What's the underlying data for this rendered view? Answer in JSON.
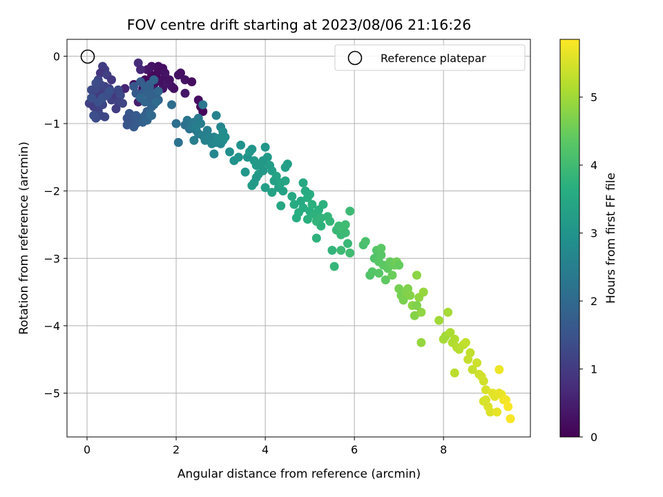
{
  "chart_data": {
    "type": "scatter",
    "title": "FOV centre drift starting at 2023/08/06 21:16:26",
    "xlabel": "Angular distance from reference (arcmin)",
    "ylabel": "Rotation from reference (arcmin)",
    "xlim": [
      -0.45,
      9.95
    ],
    "ylim": [
      -5.65,
      0.25
    ],
    "xticks": [
      0,
      2,
      4,
      6,
      8
    ],
    "yticks": [
      0,
      -1,
      -2,
      -3,
      -4,
      -5
    ],
    "xtick_labels": [
      "0",
      "2",
      "4",
      "6",
      "8"
    ],
    "ytick_labels": [
      "0",
      "−1",
      "−2",
      "−3",
      "−4",
      "−5"
    ],
    "grid": true,
    "colormap": "viridis",
    "colorbar": {
      "label": "Hours from first FF file",
      "range": [
        0,
        5.85
      ],
      "ticks": [
        0,
        1,
        2,
        3,
        4,
        5
      ],
      "tick_labels": [
        "0",
        "1",
        "2",
        "3",
        "4",
        "5"
      ]
    },
    "legend": {
      "position": "top-right",
      "entries": [
        "Reference platepar"
      ]
    },
    "reference_point": {
      "x": 0,
      "y": 0
    },
    "points": [
      [
        1.05,
        -0.42,
        0.15
      ],
      [
        1.25,
        -0.48,
        0.2
      ],
      [
        1.3,
        -0.35,
        0.1
      ],
      [
        1.4,
        -0.38,
        0.12
      ],
      [
        1.45,
        -0.28,
        0.15
      ],
      [
        1.5,
        -0.42,
        0.2
      ],
      [
        1.55,
        -0.3,
        0.1
      ],
      [
        1.6,
        -0.22,
        0.18
      ],
      [
        1.65,
        -0.38,
        0.25
      ],
      [
        1.7,
        -0.48,
        0.3
      ],
      [
        1.75,
        -0.3,
        0.22
      ],
      [
        1.8,
        -0.4,
        0.35
      ],
      [
        1.85,
        -0.35,
        0.28
      ],
      [
        1.9,
        -0.45,
        0.3
      ],
      [
        1.55,
        -0.52,
        0.4
      ],
      [
        1.45,
        -0.15,
        0.3
      ],
      [
        1.35,
        -0.2,
        0.35
      ],
      [
        1.6,
        -0.15,
        0.25
      ],
      [
        1.7,
        -0.18,
        0.22
      ],
      [
        1.75,
        -0.25,
        0.3
      ],
      [
        2.05,
        -0.28,
        0.3
      ],
      [
        2.1,
        -0.25,
        0.25
      ],
      [
        2.2,
        -0.35,
        0.3
      ],
      [
        2.5,
        -0.65,
        0.2
      ],
      [
        2.6,
        -0.82,
        0.1
      ],
      [
        2.55,
        -0.75,
        0.15
      ],
      [
        2.2,
        -0.55,
        0.35
      ],
      [
        2.35,
        -0.38,
        0.2
      ],
      [
        1.95,
        -0.48,
        0.25
      ],
      [
        1.5,
        -0.6,
        0.7
      ],
      [
        1.15,
        -0.68,
        0.5
      ],
      [
        0.85,
        -0.48,
        0.6
      ],
      [
        1.15,
        -0.1,
        0.75
      ],
      [
        1.2,
        -0.2,
        0.65
      ],
      [
        0.4,
        -0.2,
        1.0
      ],
      [
        0.35,
        -0.15,
        1.05
      ],
      [
        0.3,
        -0.25,
        0.9
      ],
      [
        0.45,
        -0.28,
        1.1
      ],
      [
        0.55,
        -0.35,
        0.95
      ],
      [
        0.5,
        -0.48,
        1.15
      ],
      [
        0.6,
        -0.55,
        1.2
      ],
      [
        0.55,
        -0.65,
        1.1
      ],
      [
        0.65,
        -0.6,
        1.0
      ],
      [
        0.7,
        -0.5,
        1.25
      ],
      [
        0.75,
        -0.58,
        1.3
      ],
      [
        0.7,
        -0.68,
        1.15
      ],
      [
        0.8,
        -0.7,
        1.2
      ],
      [
        0.65,
        -0.78,
        1.05
      ],
      [
        0.1,
        -0.5,
        1.3
      ],
      [
        0.15,
        -0.58,
        1.25
      ],
      [
        0.2,
        -0.65,
        1.2
      ],
      [
        0.25,
        -0.55,
        1.1
      ],
      [
        0.3,
        -0.6,
        1.0
      ],
      [
        0.35,
        -0.5,
        1.05
      ],
      [
        0.4,
        -0.45,
        1.15
      ],
      [
        0.25,
        -0.35,
        1.2
      ],
      [
        0.2,
        -0.48,
        1.3
      ],
      [
        0.3,
        -0.42,
        1.25
      ],
      [
        0.05,
        -0.7,
        1.1
      ],
      [
        0.15,
        -0.75,
        1.05
      ],
      [
        0.25,
        -0.8,
        1.15
      ],
      [
        0.35,
        -0.72,
        1.2
      ],
      [
        0.3,
        -0.88,
        1.3
      ],
      [
        0.2,
        -0.92,
        1.35
      ],
      [
        0.4,
        -0.9,
        1.25
      ],
      [
        0.15,
        -0.88,
        1.4
      ],
      [
        0.25,
        -0.68,
        1.45
      ],
      [
        0.35,
        -0.62,
        1.5
      ],
      [
        0.45,
        -0.58,
        1.4
      ],
      [
        0.2,
        -0.4,
        1.35
      ],
      [
        0.1,
        -0.62,
        1.45
      ],
      [
        0.5,
        -0.52,
        1.45
      ],
      [
        0.95,
        -0.85,
        1.55
      ],
      [
        1.0,
        -0.95,
        1.6
      ],
      [
        1.1,
        -1.0,
        1.65
      ],
      [
        1.05,
        -1.05,
        1.7
      ],
      [
        0.95,
        -1.0,
        1.6
      ],
      [
        0.9,
        -0.92,
        1.5
      ],
      [
        0.9,
        -1.02,
        1.55
      ],
      [
        1.2,
        -0.92,
        1.75
      ],
      [
        1.25,
        -0.98,
        1.8
      ],
      [
        1.3,
        -0.88,
        1.85
      ],
      [
        1.35,
        -0.82,
        1.7
      ],
      [
        1.45,
        -0.75,
        1.85
      ],
      [
        1.4,
        -0.65,
        1.8
      ],
      [
        1.5,
        -0.72,
        1.9
      ],
      [
        1.55,
        -0.58,
        1.95
      ],
      [
        1.6,
        -0.65,
        1.85
      ],
      [
        1.5,
        -0.55,
        1.8
      ],
      [
        1.45,
        -0.62,
        1.75
      ],
      [
        1.35,
        -0.95,
        1.9
      ],
      [
        1.4,
        -0.85,
        1.95
      ],
      [
        1.55,
        -0.68,
        2.0
      ],
      [
        1.6,
        -0.52,
        1.95
      ],
      [
        1.1,
        -0.88,
        1.65
      ],
      [
        1.2,
        -0.38,
        1.7
      ],
      [
        1.3,
        -0.45,
        1.75
      ],
      [
        1.25,
        -0.55,
        1.7
      ],
      [
        1.05,
        -0.45,
        1.6
      ],
      [
        1.1,
        -0.55,
        1.65
      ],
      [
        1.4,
        -0.45,
        1.8
      ],
      [
        1.35,
        -0.55,
        1.85
      ],
      [
        1.2,
        -0.62,
        1.95
      ],
      [
        1.3,
        -0.68,
        1.9
      ],
      [
        1.4,
        -0.42,
        1.75
      ],
      [
        1.5,
        -0.35,
        1.9
      ],
      [
        1.45,
        -0.88,
        2.0
      ],
      [
        1.9,
        -0.72,
        2.05
      ],
      [
        2.0,
        -1.0,
        2.1
      ],
      [
        2.05,
        -1.28,
        2.2
      ],
      [
        2.2,
        -1.02,
        2.15
      ],
      [
        2.3,
        -1.08,
        2.2
      ],
      [
        2.25,
        -0.95,
        2.25
      ],
      [
        2.35,
        -1.05,
        2.3
      ],
      [
        2.4,
        -0.98,
        2.35
      ],
      [
        2.45,
        -1.1,
        2.3
      ],
      [
        2.5,
        -0.92,
        2.4
      ],
      [
        2.55,
        -1.0,
        2.45
      ],
      [
        2.5,
        -1.15,
        2.4
      ],
      [
        2.4,
        -1.25,
        2.45
      ],
      [
        2.6,
        -1.18,
        2.5
      ],
      [
        2.65,
        -1.25,
        2.55
      ],
      [
        2.7,
        -1.1,
        2.5
      ],
      [
        2.6,
        -0.72,
        2.3
      ],
      [
        2.75,
        -1.2,
        2.6
      ],
      [
        2.8,
        -1.3,
        2.65
      ],
      [
        2.85,
        -1.2,
        2.6
      ],
      [
        2.9,
        -1.28,
        2.7
      ],
      [
        2.95,
        -1.22,
        2.75
      ],
      [
        3.0,
        -1.3,
        2.7
      ],
      [
        3.05,
        -1.25,
        2.75
      ],
      [
        2.85,
        -1.45,
        2.7
      ],
      [
        3.0,
        -1.05,
        2.65
      ],
      [
        3.05,
        -1.12,
        2.8
      ],
      [
        3.1,
        -1.2,
        2.85
      ],
      [
        2.9,
        -0.88,
        2.6
      ],
      [
        2.45,
        -1.05,
        2.5
      ],
      [
        3.2,
        -1.42,
        2.9
      ],
      [
        3.3,
        -1.55,
        2.95
      ],
      [
        3.4,
        -1.5,
        3.0
      ],
      [
        3.45,
        -1.32,
        2.95
      ],
      [
        3.55,
        -1.72,
        3.05
      ],
      [
        3.6,
        -1.5,
        3.0
      ],
      [
        3.65,
        -1.42,
        3.1
      ],
      [
        3.7,
        -1.38,
        3.05
      ],
      [
        3.75,
        -1.55,
        3.1
      ],
      [
        3.8,
        -1.62,
        3.15
      ],
      [
        3.85,
        -1.75,
        3.2
      ],
      [
        3.9,
        -1.62,
        3.15
      ],
      [
        3.95,
        -1.7,
        3.1
      ],
      [
        4.0,
        -1.35,
        3.05
      ],
      [
        4.05,
        -1.5,
        3.15
      ],
      [
        3.7,
        -1.92,
        3.2
      ],
      [
        3.75,
        -1.88,
        3.15
      ],
      [
        3.8,
        -1.8,
        3.1
      ],
      [
        4.1,
        -1.62,
        3.2
      ],
      [
        4.15,
        -1.7,
        3.25
      ],
      [
        4.2,
        -1.85,
        3.3
      ],
      [
        4.25,
        -1.78,
        3.35
      ],
      [
        4.3,
        -1.95,
        3.3
      ],
      [
        4.35,
        -1.88,
        3.4
      ],
      [
        4.4,
        -2.0,
        3.35
      ],
      [
        4.45,
        -1.85,
        3.4
      ],
      [
        4.5,
        -1.6,
        3.25
      ],
      [
        4.45,
        -1.65,
        3.3
      ],
      [
        4.15,
        -2.02,
        3.35
      ],
      [
        4.35,
        -2.22,
        3.45
      ],
      [
        4.0,
        -1.95,
        3.25
      ],
      [
        3.95,
        -1.55,
        3.1
      ],
      [
        4.6,
        -2.08,
        3.5
      ],
      [
        4.65,
        -2.2,
        3.55
      ],
      [
        4.7,
        -2.4,
        3.6
      ],
      [
        4.75,
        -2.32,
        3.65
      ],
      [
        4.8,
        -2.15,
        3.55
      ],
      [
        4.85,
        -2.25,
        3.6
      ],
      [
        4.85,
        -1.88,
        3.5
      ],
      [
        4.9,
        -2.0,
        3.55
      ],
      [
        4.95,
        -2.1,
        3.65
      ],
      [
        4.95,
        -2.42,
        3.7
      ],
      [
        5.0,
        -2.3,
        3.65
      ],
      [
        5.05,
        -2.2,
        3.7
      ],
      [
        5.1,
        -2.35,
        3.75
      ],
      [
        5.15,
        -2.45,
        3.8
      ],
      [
        5.15,
        -2.7,
        3.75
      ],
      [
        5.2,
        -2.28,
        3.7
      ],
      [
        5.25,
        -2.4,
        3.8
      ],
      [
        5.25,
        -2.52,
        3.75
      ],
      [
        5.3,
        -2.2,
        3.7
      ],
      [
        5.4,
        -2.38,
        3.8
      ],
      [
        5.45,
        -2.45,
        3.85
      ],
      [
        5.5,
        -2.88,
        3.8
      ],
      [
        5.55,
        -3.12,
        3.85
      ],
      [
        5.6,
        -2.58,
        3.9
      ],
      [
        5.65,
        -2.52,
        3.95
      ],
      [
        5.7,
        -2.65,
        3.9
      ],
      [
        5.75,
        -2.58,
        4.0
      ],
      [
        5.8,
        -2.62,
        3.95
      ],
      [
        5.8,
        -2.5,
        4.0
      ],
      [
        5.85,
        -2.78,
        3.9
      ],
      [
        5.9,
        -2.3,
        3.95
      ],
      [
        5.9,
        -2.92,
        4.0
      ],
      [
        5.7,
        -2.88,
        3.95
      ],
      [
        5.0,
        -2.05,
        3.6
      ],
      [
        6.2,
        -2.8,
        4.1
      ],
      [
        6.25,
        -2.75,
        4.15
      ],
      [
        6.35,
        -3.25,
        4.2
      ],
      [
        6.4,
        -3.2,
        4.25
      ],
      [
        6.45,
        -3.0,
        4.2
      ],
      [
        6.5,
        -2.88,
        4.25
      ],
      [
        6.55,
        -3.05,
        4.3
      ],
      [
        6.55,
        -3.22,
        4.3
      ],
      [
        6.6,
        -2.85,
        4.35
      ],
      [
        6.65,
        -3.1,
        4.35
      ],
      [
        6.7,
        -3.32,
        4.4
      ],
      [
        6.75,
        -3.15,
        4.4
      ],
      [
        6.8,
        -3.05,
        4.45
      ],
      [
        6.85,
        -3.25,
        4.5
      ],
      [
        6.9,
        -3.1,
        4.5
      ],
      [
        6.95,
        -3.05,
        4.55
      ],
      [
        7.0,
        -3.45,
        4.6
      ],
      [
        7.05,
        -3.55,
        4.6
      ],
      [
        7.1,
        -3.62,
        4.65
      ],
      [
        7.15,
        -3.5,
        4.7
      ],
      [
        7.2,
        -3.45,
        4.7
      ],
      [
        7.25,
        -3.55,
        4.75
      ],
      [
        7.3,
        -3.7,
        4.8
      ],
      [
        7.35,
        -3.85,
        4.75
      ],
      [
        7.4,
        -3.25,
        4.8
      ],
      [
        7.45,
        -3.58,
        4.85
      ],
      [
        7.5,
        -3.8,
        4.85
      ],
      [
        7.5,
        -4.25,
        4.9
      ],
      [
        7.55,
        -3.5,
        4.9
      ],
      [
        7.4,
        -3.7,
        4.7
      ],
      [
        6.6,
        -2.95,
        4.3
      ],
      [
        7.0,
        -3.1,
        4.45
      ],
      [
        7.9,
        -3.92,
        5.0
      ],
      [
        8.0,
        -4.2,
        5.05
      ],
      [
        8.05,
        -4.15,
        5.0
      ],
      [
        8.1,
        -3.8,
        5.05
      ],
      [
        8.15,
        -4.1,
        5.1
      ],
      [
        8.2,
        -4.25,
        5.15
      ],
      [
        8.25,
        -4.2,
        5.15
      ],
      [
        8.3,
        -4.32,
        5.2
      ],
      [
        8.35,
        -4.35,
        5.2
      ],
      [
        8.25,
        -4.7,
        5.25
      ],
      [
        8.45,
        -4.28,
        5.25
      ],
      [
        8.5,
        -4.25,
        5.3
      ],
      [
        8.55,
        -4.5,
        5.35
      ],
      [
        8.6,
        -4.4,
        5.3
      ],
      [
        8.65,
        -4.65,
        5.35
      ],
      [
        8.75,
        -4.55,
        5.4
      ],
      [
        8.8,
        -4.72,
        5.4
      ],
      [
        8.85,
        -4.75,
        5.45
      ],
      [
        8.9,
        -4.82,
        5.45
      ],
      [
        8.95,
        -4.95,
        5.5
      ],
      [
        8.95,
        -5.1,
        5.5
      ],
      [
        9.0,
        -5.2,
        5.55
      ],
      [
        9.05,
        -5.28,
        5.55
      ],
      [
        9.1,
        -5.0,
        5.6
      ],
      [
        9.15,
        -5.05,
        5.6
      ],
      [
        9.2,
        -5.28,
        5.65
      ],
      [
        9.25,
        -4.65,
        5.7
      ],
      [
        9.3,
        -5.02,
        5.7
      ],
      [
        9.35,
        -5.1,
        5.75
      ],
      [
        9.4,
        -5.1,
        5.75
      ],
      [
        9.45,
        -5.2,
        5.8
      ],
      [
        9.5,
        -5.38,
        5.8
      ],
      [
        8.9,
        -5.12,
        5.5
      ],
      [
        9.25,
        -5.0,
        5.65
      ]
    ]
  }
}
